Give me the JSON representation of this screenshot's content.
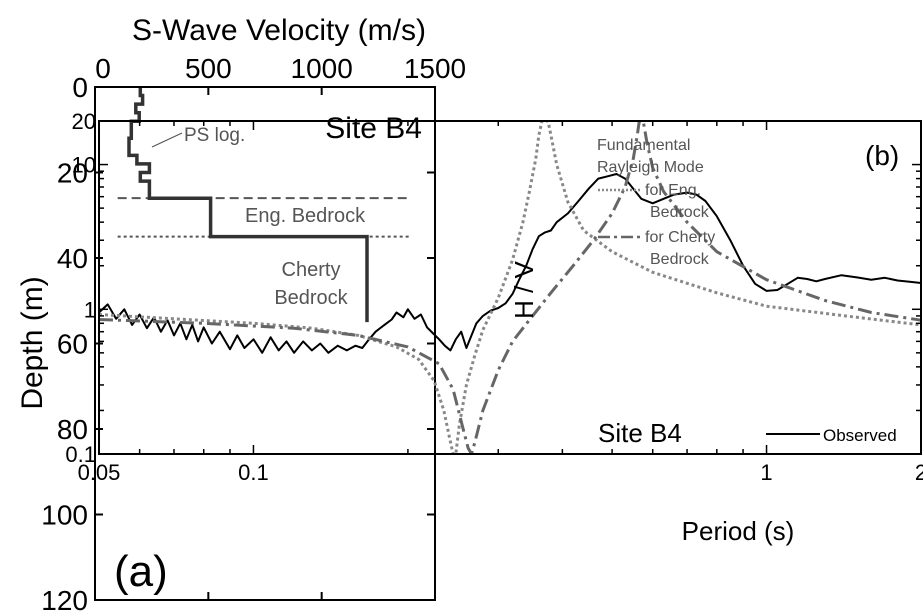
{
  "chart_data": [
    {
      "type": "line",
      "panel_label": "(a)",
      "title": "S-Wave Velocity (m/s)",
      "xlabel": "S-Wave Velocity (m/s)",
      "ylabel": "Depth (m)",
      "xlim": [
        0,
        1500
      ],
      "ylim": [
        0,
        120
      ],
      "y_inverted": true,
      "x_axis_position": "top",
      "x_ticks": [
        "0",
        "500",
        "1000",
        "1500"
      ],
      "y_ticks": [
        "0",
        "20",
        "40",
        "60",
        "80",
        "100",
        "120"
      ],
      "site_label": "Site B4",
      "series": [
        {
          "name": "PS log.",
          "color": "#333333",
          "points": [
            [
              200,
              0
            ],
            [
              200,
              2
            ],
            [
              210,
              2
            ],
            [
              210,
              4
            ],
            [
              180,
              4
            ],
            [
              180,
              6
            ],
            [
              195,
              6
            ],
            [
              195,
              8
            ],
            [
              160,
              8
            ],
            [
              160,
              12
            ],
            [
              150,
              12
            ],
            [
              150,
              16
            ],
            [
              185,
              16
            ],
            [
              185,
              18
            ],
            [
              240,
              18
            ],
            [
              240,
              20
            ],
            [
              200,
              20
            ],
            [
              200,
              22
            ],
            [
              240,
              22
            ],
            [
              240,
              26
            ],
            [
              510,
              26
            ],
            [
              510,
              35
            ],
            [
              1200,
              35
            ],
            [
              1200,
              55
            ]
          ]
        }
      ],
      "reference_lines": [
        {
          "name": "Eng. Bedrock",
          "depth": 26,
          "style": "dashed",
          "color": "#555555"
        },
        {
          "name": "Cherty Bedrock",
          "depth": 35,
          "style": "dotted",
          "color": "#555555"
        }
      ],
      "annotations": [
        {
          "text": "PS log."
        },
        {
          "text": "Eng. Bedrock"
        },
        {
          "text": "Cherty"
        },
        {
          "text": "Bedrock"
        }
      ]
    },
    {
      "type": "line",
      "panel_label": "(b)",
      "xlabel": "Period (s)",
      "ylabel": "H / V",
      "xscale": "log",
      "yscale": "log",
      "xlim": [
        0.05,
        2
      ],
      "ylim": [
        0.1,
        20
      ],
      "x_ticks": [
        "0.05",
        "0.1",
        "1",
        "2"
      ],
      "y_ticks": [
        "0.1",
        "1",
        "10",
        "20"
      ],
      "site_label": "Site B4",
      "legend": {
        "title_lines": [
          "Fundamental",
          "Rayleigh Mode"
        ],
        "entries": [
          {
            "lines": [
              "for Eng.",
              "Bedrock"
            ],
            "series": "Eng. Bedrock"
          },
          {
            "lines": [
              "for Cherty",
              "Bedrock"
            ],
            "series": "Cherty Bedrock"
          }
        ],
        "observed_label": "Observed",
        "placement": "upper-left / lower-right"
      },
      "series": [
        {
          "name": "Observed",
          "style": "solid",
          "color": "#000000",
          "points": [
            [
              0.05,
              0.95
            ],
            [
              0.052,
              1.08
            ],
            [
              0.054,
              0.86
            ],
            [
              0.056,
              1.0
            ],
            [
              0.058,
              0.78
            ],
            [
              0.06,
              0.92
            ],
            [
              0.062,
              0.74
            ],
            [
              0.064,
              0.88
            ],
            [
              0.066,
              0.7
            ],
            [
              0.068,
              0.84
            ],
            [
              0.07,
              0.66
            ],
            [
              0.072,
              0.8
            ],
            [
              0.074,
              0.62
            ],
            [
              0.076,
              0.78
            ],
            [
              0.078,
              0.6
            ],
            [
              0.08,
              0.75
            ],
            [
              0.083,
              0.58
            ],
            [
              0.086,
              0.7
            ],
            [
              0.09,
              0.53
            ],
            [
              0.093,
              0.66
            ],
            [
              0.096,
              0.54
            ],
            [
              0.1,
              0.62
            ],
            [
              0.104,
              0.5
            ],
            [
              0.108,
              0.64
            ],
            [
              0.112,
              0.52
            ],
            [
              0.116,
              0.6
            ],
            [
              0.12,
              0.5
            ],
            [
              0.125,
              0.6
            ],
            [
              0.13,
              0.52
            ],
            [
              0.135,
              0.58
            ],
            [
              0.14,
              0.5
            ],
            [
              0.146,
              0.56
            ],
            [
              0.152,
              0.52
            ],
            [
              0.158,
              0.56
            ],
            [
              0.163,
              0.54
            ],
            [
              0.168,
              0.62
            ],
            [
              0.173,
              0.7
            ],
            [
              0.18,
              0.78
            ],
            [
              0.186,
              0.85
            ],
            [
              0.19,
              0.95
            ],
            [
              0.196,
              0.88
            ],
            [
              0.2,
              1.0
            ],
            [
              0.206,
              0.86
            ],
            [
              0.212,
              0.92
            ],
            [
              0.218,
              0.75
            ],
            [
              0.224,
              0.68
            ],
            [
              0.23,
              0.62
            ],
            [
              0.236,
              0.56
            ],
            [
              0.242,
              0.52
            ],
            [
              0.248,
              0.62
            ],
            [
              0.254,
              0.7
            ],
            [
              0.26,
              0.54
            ],
            [
              0.266,
              0.66
            ],
            [
              0.272,
              0.8
            ],
            [
              0.28,
              0.9
            ],
            [
              0.29,
              0.98
            ],
            [
              0.3,
              1.02
            ],
            [
              0.31,
              1.1
            ],
            [
              0.32,
              1.28
            ],
            [
              0.33,
              1.62
            ],
            [
              0.34,
              2.0
            ],
            [
              0.35,
              2.6
            ],
            [
              0.36,
              3.2
            ],
            [
              0.37,
              3.4
            ],
            [
              0.38,
              3.5
            ],
            [
              0.39,
              4.0
            ],
            [
              0.41,
              4.6
            ],
            [
              0.43,
              5.6
            ],
            [
              0.45,
              6.8
            ],
            [
              0.47,
              8.0
            ],
            [
              0.49,
              8.3
            ],
            [
              0.51,
              8.6
            ],
            [
              0.53,
              8.0
            ],
            [
              0.55,
              6.8
            ],
            [
              0.57,
              5.8
            ],
            [
              0.6,
              5.4
            ],
            [
              0.63,
              5.8
            ],
            [
              0.66,
              6.2
            ],
            [
              0.7,
              6.4
            ],
            [
              0.73,
              6.2
            ],
            [
              0.76,
              5.6
            ],
            [
              0.8,
              4.4
            ],
            [
              0.85,
              3.0
            ],
            [
              0.9,
              2.0
            ],
            [
              0.95,
              1.5
            ],
            [
              1.0,
              1.34
            ],
            [
              1.05,
              1.36
            ],
            [
              1.1,
              1.5
            ],
            [
              1.15,
              1.65
            ],
            [
              1.2,
              1.62
            ],
            [
              1.25,
              1.56
            ],
            [
              1.3,
              1.62
            ],
            [
              1.4,
              1.72
            ],
            [
              1.5,
              1.66
            ],
            [
              1.6,
              1.6
            ],
            [
              1.7,
              1.65
            ],
            [
              1.8,
              1.58
            ],
            [
              1.9,
              1.55
            ],
            [
              2.0,
              1.52
            ]
          ]
        },
        {
          "name": "Eng. Bedrock",
          "style": "dotted",
          "color": "#888888",
          "points": [
            [
              0.05,
              0.92
            ],
            [
              0.07,
              0.86
            ],
            [
              0.1,
              0.8
            ],
            [
              0.13,
              0.74
            ],
            [
              0.16,
              0.66
            ],
            [
              0.19,
              0.55
            ],
            [
              0.21,
              0.45
            ],
            [
              0.225,
              0.32
            ],
            [
              0.235,
              0.2
            ],
            [
              0.241,
              0.13
            ],
            [
              0.245,
              0.1
            ],
            [
              0.248,
              0.1
            ],
            [
              0.252,
              0.16
            ],
            [
              0.26,
              0.3
            ],
            [
              0.27,
              0.48
            ],
            [
              0.28,
              0.72
            ],
            [
              0.3,
              1.2
            ],
            [
              0.32,
              2.2
            ],
            [
              0.335,
              4.0
            ],
            [
              0.345,
              6.5
            ],
            [
              0.355,
              11
            ],
            [
              0.36,
              16
            ],
            [
              0.365,
              20
            ],
            [
              0.375,
              20
            ],
            [
              0.38,
              16
            ],
            [
              0.39,
              10
            ],
            [
              0.41,
              5.5
            ],
            [
              0.44,
              3.5
            ],
            [
              0.5,
              2.5
            ],
            [
              0.6,
              1.8
            ],
            [
              0.8,
              1.3
            ],
            [
              1.0,
              1.05
            ],
            [
              1.5,
              0.88
            ],
            [
              2.0,
              0.78
            ]
          ]
        },
        {
          "name": "Cherty Bedrock",
          "style": "dash-dot",
          "color": "#666666",
          "points": [
            [
              0.05,
              0.85
            ],
            [
              0.08,
              0.8
            ],
            [
              0.12,
              0.74
            ],
            [
              0.16,
              0.66
            ],
            [
              0.2,
              0.55
            ],
            [
              0.23,
              0.42
            ],
            [
              0.245,
              0.28
            ],
            [
              0.255,
              0.16
            ],
            [
              0.262,
              0.11
            ],
            [
              0.266,
              0.1
            ],
            [
              0.27,
              0.12
            ],
            [
              0.28,
              0.2
            ],
            [
              0.3,
              0.38
            ],
            [
              0.32,
              0.6
            ],
            [
              0.35,
              0.9
            ],
            [
              0.38,
              1.3
            ],
            [
              0.42,
              2.0
            ],
            [
              0.46,
              3.0
            ],
            [
              0.5,
              4.6
            ],
            [
              0.53,
              7.0
            ],
            [
              0.55,
              11
            ],
            [
              0.56,
              16
            ],
            [
              0.565,
              20
            ],
            [
              0.575,
              20
            ],
            [
              0.585,
              14
            ],
            [
              0.6,
              9.5
            ],
            [
              0.63,
              6.5
            ],
            [
              0.7,
              4.0
            ],
            [
              0.8,
              2.5
            ],
            [
              1.0,
              1.6
            ],
            [
              1.3,
              1.15
            ],
            [
              1.6,
              0.95
            ],
            [
              2.0,
              0.84
            ]
          ]
        }
      ]
    }
  ]
}
